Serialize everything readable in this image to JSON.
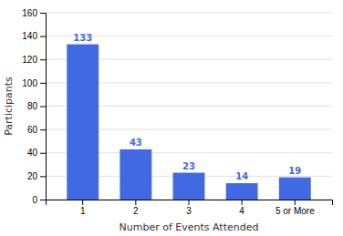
{
  "chart_data": {
    "type": "bar",
    "xlabel": "Number of Events Attended",
    "ylabel": "Participants",
    "categories": [
      "1",
      "2",
      "3",
      "4",
      "5 or More"
    ],
    "values": [
      133,
      43,
      23,
      14,
      19
    ],
    "color": "#4169E1",
    "ylim": [
      0,
      160
    ],
    "yticks": [
      0,
      20,
      40,
      60,
      80,
      100,
      120,
      140,
      160
    ],
    "grid": true,
    "data_labels": true
  }
}
